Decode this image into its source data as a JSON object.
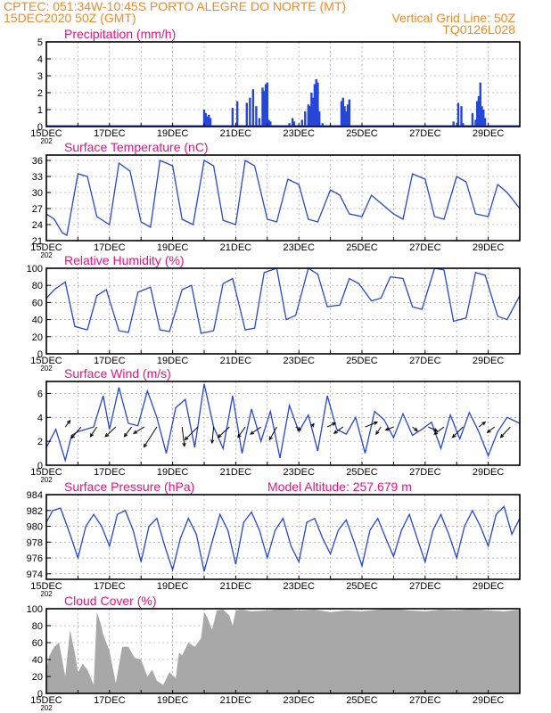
{
  "header": {
    "line1": "CPTEC:  051:34W-10:45S  PORTO ALEGRE DO NORTE (MT)",
    "line2_left": "15DEC2020 50Z (GMT)",
    "line2_right": "Vertical Grid Line: 50Z",
    "line3_right": "TQ0126L028"
  },
  "colors": {
    "header": "#f08a24",
    "title": "#e8127c",
    "series": "#2646d8",
    "cloud": "#a8a8a8",
    "vector": "#000000",
    "grid": "#888888"
  },
  "x_axis": {
    "range_days": [
      0,
      15
    ],
    "tick_labels": [
      "15DEC",
      "17DEC",
      "19DEC",
      "21DEC",
      "23DEC",
      "25DEC",
      "27DEC",
      "29DEC"
    ],
    "tick_days": [
      0,
      2,
      4,
      6,
      8,
      10,
      12,
      14
    ],
    "year_stub": "202"
  },
  "chart_data": [
    {
      "type": "bar",
      "title": "Precipitation  (mm/h)",
      "ylim": [
        0,
        5
      ],
      "yticks": [
        "0",
        "1",
        "2",
        "3",
        "4",
        "5"
      ],
      "x": [
        5.0,
        5.05,
        5.1,
        5.15,
        5.2,
        5.9,
        6.05,
        6.35,
        6.45,
        6.55,
        6.65,
        6.75,
        6.85,
        6.9,
        6.95,
        7.0,
        7.05,
        7.1,
        7.7,
        7.8,
        7.85,
        8.1,
        8.2,
        8.3,
        8.35,
        8.4,
        8.45,
        8.5,
        8.55,
        8.6,
        8.65,
        8.75,
        9.35,
        9.4,
        9.45,
        9.5,
        9.55,
        9.6,
        12.9,
        13.05,
        13.15,
        13.2,
        13.5,
        13.6,
        13.65,
        13.7,
        13.75,
        13.8,
        13.85,
        13.9
      ],
      "values": [
        1.0,
        0.8,
        0.6,
        0.7,
        0.5,
        1.1,
        1.5,
        1.4,
        1.7,
        2.2,
        1.2,
        0.5,
        2.3,
        2.1,
        2.5,
        2.6,
        0.4,
        0.3,
        0.2,
        0.5,
        0.3,
        0.4,
        0.9,
        1.3,
        1.2,
        2.0,
        1.7,
        2.5,
        2.8,
        2.6,
        0.9,
        0.2,
        1.5,
        1.7,
        1.2,
        0.9,
        1.3,
        1.6,
        0.3,
        1.4,
        1.2,
        0.2,
        0.8,
        0.4,
        1.5,
        1.8,
        2.6,
        1.2,
        1.0,
        0.5
      ]
    },
    {
      "type": "line",
      "title": "Surface Temperature (nC)",
      "ylim": [
        21,
        37
      ],
      "yticks": [
        "21",
        "24",
        "27",
        "30",
        "33",
        "36"
      ],
      "x": [
        0,
        0.25,
        0.5,
        0.65,
        1.0,
        1.3,
        1.6,
        2.0,
        2.3,
        2.65,
        3.0,
        3.3,
        3.6,
        4.0,
        4.3,
        4.65,
        5.0,
        5.3,
        5.6,
        6.0,
        6.3,
        6.6,
        7.0,
        7.3,
        7.65,
        8.0,
        8.3,
        8.6,
        9.0,
        9.3,
        9.6,
        10.0,
        10.3,
        10.6,
        11.0,
        11.3,
        11.6,
        12.0,
        12.3,
        12.6,
        13.0,
        13.3,
        13.6,
        14.0,
        14.3,
        14.6,
        15.0
      ],
      "y": [
        26,
        25,
        22.5,
        22,
        33.5,
        33,
        25.5,
        24,
        35.5,
        34,
        24.5,
        23.5,
        36,
        35,
        25,
        24,
        36,
        35,
        24.8,
        24,
        36,
        35,
        25,
        24.5,
        32.5,
        31.5,
        25,
        24.5,
        30.5,
        29.5,
        26,
        25.5,
        29.5,
        28,
        26,
        25,
        33.5,
        32.5,
        25.5,
        25,
        33,
        32,
        26,
        25.5,
        31.5,
        30,
        27
      ]
    },
    {
      "type": "line",
      "title": "Relative Humidity (%)",
      "ylim": [
        0,
        100
      ],
      "yticks": [
        "0",
        "20",
        "40",
        "60",
        "80",
        "100"
      ],
      "x": [
        0,
        0.25,
        0.6,
        0.9,
        1.3,
        1.6,
        1.9,
        2.3,
        2.6,
        2.9,
        3.3,
        3.6,
        3.9,
        4.3,
        4.6,
        4.9,
        5.3,
        5.6,
        5.9,
        6.3,
        6.6,
        6.9,
        7.3,
        7.6,
        7.9,
        8.3,
        8.6,
        8.9,
        9.3,
        9.6,
        9.9,
        10.3,
        10.6,
        10.9,
        11.3,
        11.6,
        11.9,
        12.3,
        12.6,
        12.9,
        13.3,
        13.6,
        13.9,
        14.3,
        14.6,
        15.0
      ],
      "y": [
        65,
        75,
        84,
        32,
        28,
        68,
        75,
        27,
        25,
        72,
        78,
        28,
        26,
        75,
        80,
        24,
        27,
        82,
        88,
        28,
        30,
        95,
        100,
        40,
        45,
        100,
        93,
        55,
        57,
        88,
        82,
        62,
        65,
        90,
        88,
        55,
        52,
        100,
        98,
        38,
        42,
        95,
        92,
        44,
        40,
        68
      ]
    },
    {
      "type": "line",
      "title": "Surface Wind (m/s)",
      "ylim": [
        0,
        7
      ],
      "yticks": [
        "0",
        "2",
        "4",
        "6"
      ],
      "x": [
        0,
        0.3,
        0.6,
        0.8,
        1.0,
        1.5,
        1.8,
        2.0,
        2.3,
        2.6,
        2.9,
        3.2,
        3.5,
        3.8,
        4.1,
        4.4,
        4.7,
        5.0,
        5.3,
        5.6,
        5.9,
        6.2,
        6.5,
        6.8,
        7.1,
        7.4,
        7.7,
        8.0,
        8.3,
        8.6,
        8.9,
        9.2,
        9.5,
        9.8,
        10.1,
        10.4,
        10.7,
        11.0,
        11.3,
        11.6,
        11.9,
        12.2,
        12.5,
        12.8,
        13.1,
        13.4,
        13.7,
        14.0,
        14.3,
        14.6,
        15.0
      ],
      "y": [
        1.5,
        3.0,
        0.4,
        2.5,
        2.8,
        3.2,
        5.8,
        3.0,
        6.5,
        3.5,
        3.3,
        6.2,
        4.0,
        1.0,
        4.8,
        5.5,
        1.5,
        6.8,
        3.2,
        1.4,
        5.8,
        1.0,
        4.7,
        2.0,
        4.5,
        0.6,
        5.0,
        2.8,
        4.2,
        1.2,
        5.8,
        3.0,
        2.6,
        4.0,
        1.0,
        4.5,
        3.8,
        2.3,
        4.3,
        2.5,
        3.0,
        3.6,
        1.4,
        4.2,
        2.2,
        4.4,
        2.8,
        0.8,
        2.8,
        4.0,
        3.5
      ],
      "vectors": {
        "x": [
          0.6,
          1.1,
          1.6,
          2.2,
          2.7,
          3.1,
          3.5,
          4.3,
          4.8,
          5.3,
          5.8,
          6.3,
          6.8,
          7.3,
          7.9,
          8.4,
          8.9,
          9.4,
          10.1,
          10.6,
          11.0,
          11.6,
          12.1,
          12.6,
          13.2,
          13.7,
          14.2,
          14.7
        ],
        "u": [
          0.6,
          -1.2,
          -0.8,
          -1.3,
          -0.9,
          -1.3,
          -1.6,
          0.3,
          -1.6,
          -0.2,
          -1.4,
          -0.9,
          -1.3,
          -0.9,
          0.6,
          0.3,
          1.0,
          -1.1,
          1.5,
          -0.6,
          -1.0,
          0.6,
          1.1,
          -1.2,
          -1.3,
          0.8,
          -0.9,
          -1.2
        ],
        "v": [
          0.8,
          -1.4,
          -1.2,
          -1.2,
          -1.2,
          -0.8,
          -2.5,
          -2.4,
          -1.6,
          -2.0,
          -1.3,
          -1.3,
          -0.9,
          -1.6,
          -0.4,
          0.4,
          0.5,
          -0.8,
          0.6,
          -0.9,
          -0.4,
          -0.5,
          -0.5,
          -0.9,
          -1.3,
          0.6,
          -0.7,
          -1.3
        ]
      }
    },
    {
      "type": "line",
      "title": "Surface Pressure (hPa)",
      "annotation": "Model Altitude: 257.679  m",
      "ylim": [
        973.3,
        984
      ],
      "yticks": [
        "974",
        "976",
        "978",
        "980",
        "982",
        "984"
      ],
      "x": [
        0,
        0.2,
        0.45,
        0.75,
        1.0,
        1.25,
        1.5,
        1.75,
        2.0,
        2.25,
        2.5,
        2.75,
        3.0,
        3.25,
        3.5,
        3.75,
        4.0,
        4.25,
        4.5,
        4.75,
        5.0,
        5.25,
        5.5,
        5.75,
        6.0,
        6.25,
        6.5,
        6.75,
        7.0,
        7.25,
        7.5,
        7.75,
        8.0,
        8.25,
        8.5,
        8.75,
        9.0,
        9.25,
        9.5,
        9.75,
        10.0,
        10.25,
        10.5,
        10.75,
        11.0,
        11.25,
        11.5,
        11.75,
        12.0,
        12.25,
        12.5,
        12.75,
        13.0,
        13.25,
        13.5,
        13.75,
        14.0,
        14.25,
        14.5,
        14.75,
        15.0
      ],
      "y": [
        980.5,
        982,
        982.3,
        979,
        976,
        980,
        981.5,
        980,
        977.5,
        981.5,
        982,
        979.5,
        975.5,
        980,
        981,
        977.5,
        974.5,
        978.5,
        981,
        979,
        974.3,
        978,
        981.5,
        979.5,
        975.2,
        980.5,
        981.8,
        979.5,
        976,
        979.5,
        981,
        977.5,
        975.5,
        980.5,
        981,
        978.5,
        976.5,
        979.5,
        980.8,
        978,
        975,
        979.5,
        981,
        978.5,
        976.2,
        979.5,
        981.5,
        978.5,
        975.5,
        979.5,
        981.5,
        979,
        976,
        980,
        982,
        980,
        977.5,
        981.5,
        982.5,
        979,
        981
      ]
    },
    {
      "type": "area",
      "title": "Cloud Cover  (%)",
      "ylim": [
        0,
        100
      ],
      "yticks": [
        "0",
        "20",
        "40",
        "60",
        "80",
        "100"
      ],
      "x": [
        0,
        0.1,
        0.25,
        0.4,
        0.5,
        0.6,
        0.75,
        0.9,
        1.0,
        1.15,
        1.3,
        1.5,
        1.6,
        1.7,
        1.8,
        2.0,
        2.2,
        2.4,
        2.6,
        2.8,
        3.0,
        3.2,
        3.35,
        3.5,
        3.7,
        3.9,
        4.1,
        4.2,
        4.3,
        4.5,
        4.7,
        4.9,
        5.0,
        5.1,
        5.25,
        5.4,
        5.6,
        5.8,
        5.9,
        6.0,
        6.2,
        6.5,
        7.0,
        7.5,
        8.0,
        8.5,
        9.0,
        9.5,
        10.0,
        10.5,
        11.0,
        11.5,
        12.0,
        12.5,
        13.0,
        13.5,
        14.0,
        14.5,
        15.0
      ],
      "values": [
        30,
        45,
        55,
        60,
        40,
        20,
        75,
        48,
        25,
        35,
        28,
        10,
        96,
        85,
        70,
        50,
        12,
        55,
        55,
        42,
        40,
        20,
        28,
        15,
        10,
        25,
        18,
        48,
        45,
        60,
        55,
        65,
        96,
        90,
        75,
        98,
        99,
        92,
        80,
        98,
        99,
        97,
        98,
        100,
        98,
        99,
        96,
        98,
        97,
        99,
        100,
        98,
        97,
        99,
        98,
        100,
        98,
        97,
        99
      ]
    }
  ]
}
